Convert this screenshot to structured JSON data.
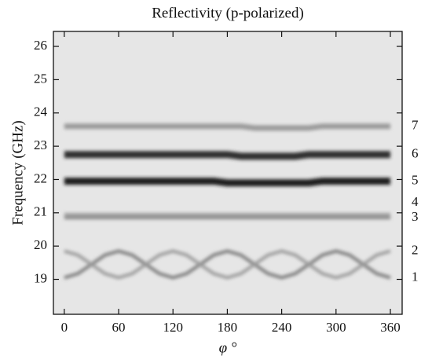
{
  "chart_data": {
    "type": "line",
    "title": "Reflectivity (p-polarized)",
    "x_label": "φ °",
    "y_label": "Frequency (GHz)",
    "x": [
      0,
      15,
      30,
      45,
      60,
      75,
      90,
      105,
      120,
      135,
      150,
      165,
      180,
      195,
      210,
      225,
      240,
      255,
      270,
      285,
      300,
      315,
      330,
      345,
      360
    ],
    "series": [
      {
        "name": "1",
        "color": "#7a7a7a",
        "values": [
          19.05,
          19.17,
          19.45,
          19.73,
          19.85,
          19.73,
          19.45,
          19.17,
          19.05,
          19.17,
          19.45,
          19.73,
          19.85,
          19.73,
          19.45,
          19.17,
          19.05,
          19.17,
          19.45,
          19.73,
          19.85,
          19.73,
          19.45,
          19.17,
          19.05
        ]
      },
      {
        "name": "2",
        "color": "#9a9a9a",
        "values": [
          19.85,
          19.73,
          19.45,
          19.17,
          19.05,
          19.17,
          19.45,
          19.73,
          19.85,
          19.73,
          19.45,
          19.17,
          19.05,
          19.17,
          19.45,
          19.73,
          19.85,
          19.73,
          19.45,
          19.17,
          19.05,
          19.17,
          19.45,
          19.73,
          19.85
        ]
      },
      {
        "name": "3",
        "color": "#8a8a8a",
        "values": [
          20.85,
          20.85,
          20.85,
          20.85,
          20.85,
          20.85,
          20.85,
          20.85,
          20.85,
          20.85,
          20.85,
          20.85,
          20.85,
          20.85,
          20.85,
          20.85,
          20.85,
          20.85,
          20.85,
          20.85,
          20.85,
          20.85,
          20.85,
          20.85,
          20.85
        ]
      },
      {
        "name": "4",
        "color": "#a0a0a0",
        "values": [
          20.95,
          20.95,
          20.95,
          20.95,
          20.95,
          20.95,
          20.95,
          20.95,
          20.95,
          20.95,
          20.95,
          20.95,
          20.95,
          20.95,
          20.95,
          20.95,
          20.95,
          20.95,
          20.95,
          20.95,
          20.95,
          20.95,
          20.95,
          20.95,
          20.95
        ]
      },
      {
        "name": "5",
        "color": "#1e1e1e",
        "values": [
          21.95,
          21.95,
          21.95,
          21.95,
          21.95,
          21.95,
          21.95,
          21.95,
          21.95,
          21.95,
          21.95,
          21.95,
          21.9,
          21.9,
          21.9,
          21.9,
          21.9,
          21.9,
          21.9,
          21.95,
          21.95,
          21.95,
          21.95,
          21.95,
          21.95
        ]
      },
      {
        "name": "6",
        "color": "#2e2e2e",
        "values": [
          22.75,
          22.75,
          22.75,
          22.75,
          22.75,
          22.75,
          22.75,
          22.75,
          22.75,
          22.75,
          22.75,
          22.75,
          22.75,
          22.7,
          22.7,
          22.7,
          22.7,
          22.7,
          22.75,
          22.75,
          22.75,
          22.75,
          22.75,
          22.75,
          22.75
        ]
      },
      {
        "name": "7",
        "color": "#9a9a9a",
        "values": [
          23.6,
          23.6,
          23.6,
          23.6,
          23.6,
          23.6,
          23.6,
          23.6,
          23.6,
          23.6,
          23.6,
          23.6,
          23.6,
          23.6,
          23.55,
          23.55,
          23.55,
          23.55,
          23.55,
          23.6,
          23.6,
          23.6,
          23.6,
          23.6,
          23.6
        ]
      }
    ],
    "xlim": [
      -12,
      373
    ],
    "ylim": [
      17.95,
      26.45
    ],
    "xticks": [
      0,
      60,
      120,
      180,
      240,
      300,
      360
    ],
    "yticks": [
      19,
      20,
      21,
      22,
      23,
      24,
      25,
      26
    ]
  }
}
